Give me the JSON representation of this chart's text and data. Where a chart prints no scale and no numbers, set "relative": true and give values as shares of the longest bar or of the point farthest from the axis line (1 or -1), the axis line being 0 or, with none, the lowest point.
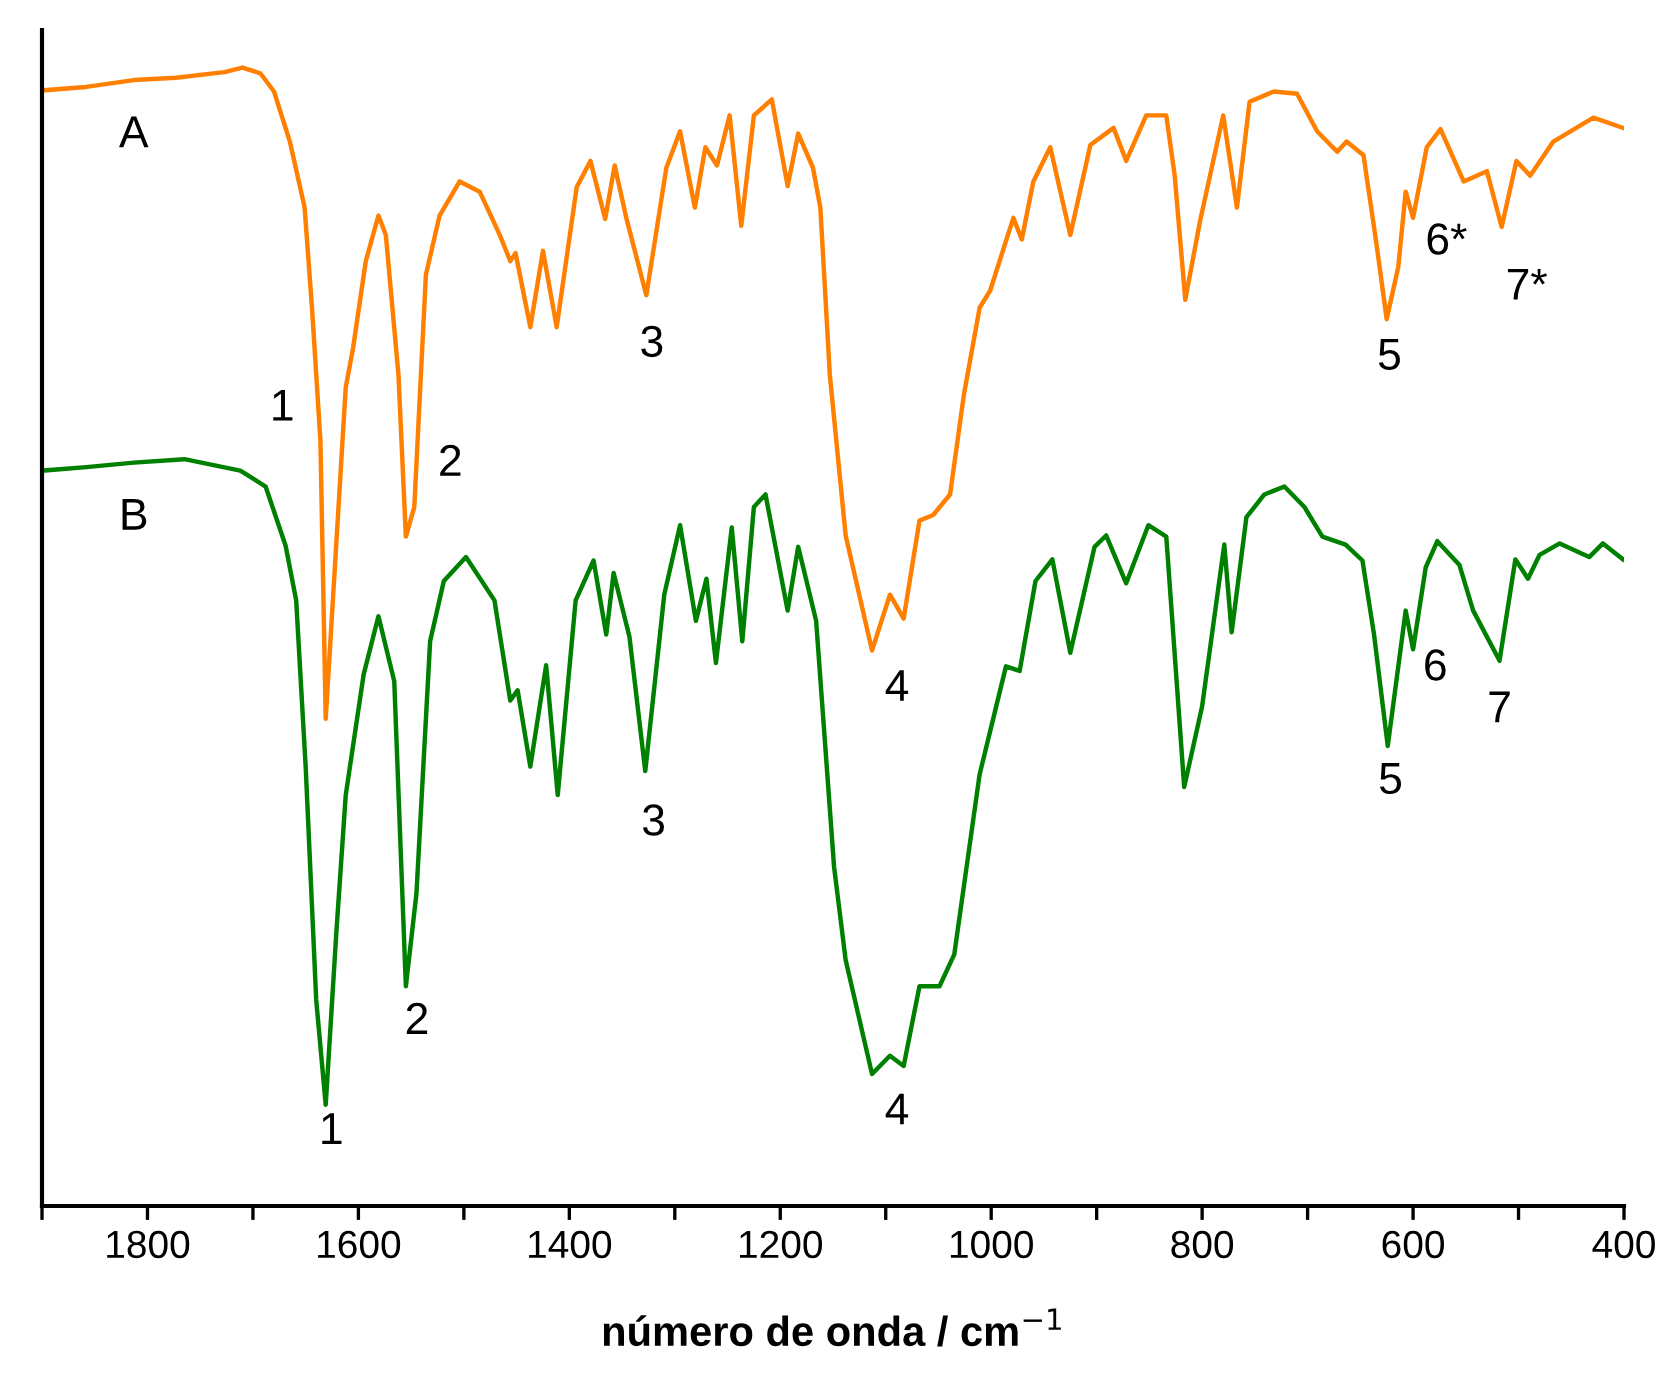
{
  "chart_data": {
    "type": "line",
    "relative": true,
    "xlabel": "número de onda / cm$^{−1}$",
    "xlim": [
      1900,
      400
    ],
    "xticks": [
      {
        "value": 1900,
        "label": null
      },
      1800,
      {
        "value": 1700,
        "label": null
      },
      1600,
      {
        "value": 1500,
        "label": null
      },
      1400,
      {
        "value": 1300,
        "label": null
      },
      1200,
      {
        "value": 1100,
        "label": null
      },
      1000,
      {
        "value": 900,
        "label": null
      },
      800,
      {
        "value": 700,
        "label": null
      },
      600,
      {
        "value": 500,
        "label": null
      },
      400
    ],
    "tick_labels": "x",
    "grid": false,
    "legend": false,
    "line_style": "solid",
    "marker": "none",
    "series": [
      {
        "name": "A",
        "color": "#ff7f00",
        "x": [
          1899,
          1858,
          1813,
          1773,
          1727,
          1710,
          1693,
          1680,
          1665,
          1651,
          1644,
          1636,
          1631,
          1612,
          1605,
          1593,
          1581,
          1574,
          1562,
          1555,
          1547,
          1536,
          1523,
          1504,
          1485,
          1466,
          1456,
          1451,
          1437,
          1425,
          1412,
          1393,
          1380,
          1366,
          1357,
          1346,
          1327,
          1308,
          1295,
          1281,
          1271,
          1260,
          1248,
          1237,
          1225,
          1208,
          1193,
          1183,
          1169,
          1162,
          1153,
          1138,
          1113,
          1096,
          1083,
          1068,
          1055,
          1039,
          1026,
          1011,
          1001,
          979,
          971,
          960,
          944,
          925,
          906,
          884,
          872,
          853,
          834,
          826,
          816,
          802,
          780,
          767,
          755,
          732,
          710,
          691,
          672,
          663,
          647,
          635,
          625,
          614,
          607,
          600,
          587,
          574,
          552,
          530,
          516,
          502,
          489,
          467,
          429,
          401
        ],
        "values": [
          0.98,
          0.983,
          0.989,
          0.991,
          0.996,
          1,
          0.995,
          0.979,
          0.935,
          0.877,
          0.789,
          0.672,
          0.428,
          0.719,
          0.754,
          0.83,
          0.87,
          0.853,
          0.73,
          0.588,
          0.614,
          0.818,
          0.87,
          0.9,
          0.891,
          0.853,
          0.83,
          0.837,
          0.772,
          0.839,
          0.772,
          0.895,
          0.918,
          0.867,
          0.914,
          0.868,
          0.8,
          0.912,
          0.944,
          0.877,
          0.93,
          0.914,
          0.958,
          0.861,
          0.958,
          0.972,
          0.896,
          0.942,
          0.912,
          0.877,
          0.73,
          0.589,
          0.488,
          0.537,
          0.516,
          0.602,
          0.607,
          0.625,
          0.712,
          0.789,
          0.804,
          0.868,
          0.849,
          0.9,
          0.93,
          0.853,
          0.932,
          0.947,
          0.918,
          0.958,
          0.958,
          0.905,
          0.796,
          0.865,
          0.958,
          0.877,
          0.97,
          0.979,
          0.977,
          0.944,
          0.926,
          0.935,
          0.923,
          0.847,
          0.779,
          0.825,
          0.891,
          0.868,
          0.93,
          0.946,
          0.9,
          0.909,
          0.86,
          0.918,
          0.905,
          0.935,
          0.956,
          0.947
        ]
      },
      {
        "name": "B",
        "color": "#008000",
        "x": [
          1899,
          1858,
          1813,
          1765,
          1712,
          1688,
          1669,
          1659,
          1650,
          1640,
          1631,
          1621,
          1612,
          1595,
          1581,
          1566,
          1555,
          1545,
          1532,
          1519,
          1498,
          1471,
          1456,
          1449,
          1437,
          1422,
          1411,
          1394,
          1377,
          1365,
          1358,
          1343,
          1328,
          1310,
          1295,
          1280,
          1270,
          1261,
          1246,
          1236,
          1225,
          1214,
          1193,
          1183,
          1166,
          1149,
          1138,
          1113,
          1096,
          1083,
          1068,
          1049,
          1035,
          1011,
          986,
          973,
          958,
          942,
          925,
          902,
          891,
          872,
          851,
          834,
          817,
          800,
          779,
          772,
          758,
          741,
          722,
          703,
          686,
          664,
          648,
          637,
          624,
          607,
          600,
          588,
          577,
          556,
          543,
          518,
          503,
          491,
          480,
          461,
          433,
          420,
          401
        ],
        "values": [
          0.646,
          0.649,
          0.653,
          0.656,
          0.646,
          0.632,
          0.58,
          0.532,
          0.386,
          0.181,
          0.089,
          0.239,
          0.361,
          0.467,
          0.518,
          0.461,
          0.193,
          0.274,
          0.496,
          0.549,
          0.57,
          0.532,
          0.444,
          0.453,
          0.386,
          0.475,
          0.361,
          0.532,
          0.567,
          0.502,
          0.556,
          0.5,
          0.382,
          0.537,
          0.598,
          0.514,
          0.551,
          0.477,
          0.596,
          0.496,
          0.614,
          0.625,
          0.523,
          0.579,
          0.514,
          0.298,
          0.216,
          0.116,
          0.132,
          0.123,
          0.193,
          0.193,
          0.221,
          0.379,
          0.474,
          0.47,
          0.549,
          0.568,
          0.486,
          0.579,
          0.589,
          0.547,
          0.598,
          0.588,
          0.368,
          0.439,
          0.581,
          0.504,
          0.605,
          0.625,
          0.632,
          0.614,
          0.588,
          0.581,
          0.567,
          0.502,
          0.404,
          0.523,
          0.489,
          0.561,
          0.584,
          0.563,
          0.523,
          0.479,
          0.568,
          0.551,
          0.572,
          0.582,
          0.57,
          0.582,
          0.568
        ]
      }
    ],
    "annotations": [
      {
        "text": "1",
        "x": 1638,
        "y": 0.7
      },
      {
        "text": "2",
        "x": 1555,
        "y": 0.588
      },
      {
        "text": "3",
        "x": 1327,
        "y": 0.8
      },
      {
        "text": "4",
        "x": 1113,
        "y": 0.488
      },
      {
        "text": "5",
        "x": 625,
        "y": 0.779
      },
      {
        "text": "6*",
        "x": 600,
        "y": 0.868
      },
      {
        "text": "7*",
        "x": 516,
        "y": 0.86
      },
      {
        "text": "1",
        "x": 1631,
        "y": 0.089
      },
      {
        "text": "2",
        "x": 1555,
        "y": 0.193
      },
      {
        "text": "3",
        "x": 1328,
        "y": 0.382
      },
      {
        "text": "4",
        "x": 1113,
        "y": 0.116
      },
      {
        "text": "5",
        "x": 624,
        "y": 0.404
      },
      {
        "text": "6",
        "x": 600,
        "y": 0.489
      },
      {
        "text": "7",
        "x": 518,
        "y": 0.479
      }
    ]
  }
}
